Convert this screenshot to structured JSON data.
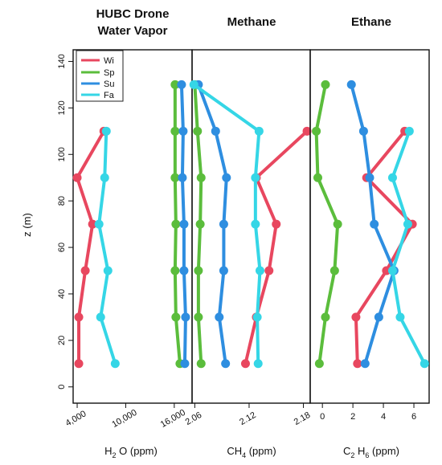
{
  "chart_data": [
    {
      "type": "line",
      "title": "HUBC Drone Water Vapor",
      "title_lines": [
        "HUBC Drone",
        "Water Vapor"
      ],
      "xlabel": "H2 O (ppm)",
      "xlabel_main": "H",
      "xlabel_sub": "2",
      "xlabel_rest": " O (ppm)",
      "ylabel": "z (m)",
      "xlim": [
        3500,
        18200
      ],
      "ylim": [
        -7,
        145
      ],
      "x_ticks": [
        4000,
        10000,
        16000
      ],
      "x_tick_labels": [
        "4,000",
        "10,000",
        "16,000"
      ],
      "y_ticks": [
        0,
        20,
        40,
        60,
        80,
        100,
        120,
        140
      ],
      "legend": {
        "position": "top-left",
        "entries": [
          "Wi",
          "Sp",
          "Su",
          "Fa"
        ]
      },
      "series": [
        {
          "name": "Wi",
          "color": "#e8475f",
          "points": [
            {
              "x": 4200,
              "y": 10
            },
            {
              "x": 4200,
              "y": 30
            },
            {
              "x": 5000,
              "y": 50
            },
            {
              "x": 5900,
              "y": 70
            },
            {
              "x": 4000,
              "y": 90
            },
            {
              "x": 7300,
              "y": 110
            }
          ]
        },
        {
          "name": "Sp",
          "color": "#5bbd3c",
          "points": [
            {
              "x": 16700,
              "y": 10
            },
            {
              "x": 16200,
              "y": 30
            },
            {
              "x": 16100,
              "y": 50
            },
            {
              "x": 16200,
              "y": 70
            },
            {
              "x": 16100,
              "y": 90
            },
            {
              "x": 16100,
              "y": 110
            },
            {
              "x": 16100,
              "y": 130
            }
          ]
        },
        {
          "name": "Su",
          "color": "#2e8ee0",
          "points": [
            {
              "x": 17300,
              "y": 10
            },
            {
              "x": 17400,
              "y": 30
            },
            {
              "x": 17200,
              "y": 50
            },
            {
              "x": 17200,
              "y": 70
            },
            {
              "x": 17000,
              "y": 90
            },
            {
              "x": 17100,
              "y": 110
            },
            {
              "x": 16900,
              "y": 130
            }
          ]
        },
        {
          "name": "Fa",
          "color": "#35d6e6",
          "points": [
            {
              "x": 8700,
              "y": 10
            },
            {
              "x": 6900,
              "y": 30
            },
            {
              "x": 7800,
              "y": 50
            },
            {
              "x": 6700,
              "y": 70
            },
            {
              "x": 7400,
              "y": 90
            },
            {
              "x": 7600,
              "y": 110
            }
          ]
        }
      ]
    },
    {
      "type": "line",
      "title": "Methane",
      "xlabel": "CH4 (ppm)",
      "xlabel_main": "CH",
      "xlabel_sub": "4",
      "xlabel_rest": " (ppm)",
      "xlim": [
        2.057,
        2.1875
      ],
      "ylim": [
        -7,
        145
      ],
      "x_ticks": [
        2.06,
        2.12,
        2.18
      ],
      "x_tick_labels": [
        "2.06",
        "2.12",
        "2.18"
      ],
      "series": [
        {
          "name": "Wi",
          "color": "#e8475f",
          "points": [
            {
              "x": 2.116,
              "y": 10
            },
            {
              "x": 2.128,
              "y": 30
            },
            {
              "x": 2.142,
              "y": 50
            },
            {
              "x": 2.15,
              "y": 70
            },
            {
              "x": 2.128,
              "y": 90
            },
            {
              "x": 2.184,
              "y": 110
            }
          ]
        },
        {
          "name": "Sp",
          "color": "#5bbd3c",
          "points": [
            {
              "x": 2.067,
              "y": 10
            },
            {
              "x": 2.064,
              "y": 30
            },
            {
              "x": 2.064,
              "y": 50
            },
            {
              "x": 2.066,
              "y": 70
            },
            {
              "x": 2.067,
              "y": 90
            },
            {
              "x": 2.063,
              "y": 110
            },
            {
              "x": 2.06,
              "y": 130
            }
          ]
        },
        {
          "name": "Su",
          "color": "#2e8ee0",
          "points": [
            {
              "x": 2.094,
              "y": 10
            },
            {
              "x": 2.087,
              "y": 30
            },
            {
              "x": 2.092,
              "y": 50
            },
            {
              "x": 2.092,
              "y": 70
            },
            {
              "x": 2.095,
              "y": 90
            },
            {
              "x": 2.083,
              "y": 110
            },
            {
              "x": 2.064,
              "y": 130
            }
          ]
        },
        {
          "name": "Fa",
          "color": "#35d6e6",
          "points": [
            {
              "x": 2.13,
              "y": 10
            },
            {
              "x": 2.129,
              "y": 30
            },
            {
              "x": 2.132,
              "y": 50
            },
            {
              "x": 2.127,
              "y": 70
            },
            {
              "x": 2.127,
              "y": 90
            },
            {
              "x": 2.131,
              "y": 110
            },
            {
              "x": 2.059,
              "y": 130
            }
          ]
        }
      ]
    },
    {
      "type": "line",
      "title": "Ethane",
      "xlabel": "C2 H6 (ppm)",
      "xlabel_main": "C",
      "xlabel_sub": "2",
      "xlabel_rest2": " H",
      "xlabel_sub2": "6",
      "xlabel_rest": " (ppm)",
      "xlim": [
        -0.8,
        7
      ],
      "ylim": [
        -7,
        145
      ],
      "x_ticks": [
        0,
        2,
        4,
        6
      ],
      "x_tick_labels": [
        "0",
        "2",
        "4",
        "6"
      ],
      "series": [
        {
          "name": "Wi",
          "color": "#e8475f",
          "points": [
            {
              "x": 2.3,
              "y": 10
            },
            {
              "x": 2.2,
              "y": 30
            },
            {
              "x": 4.2,
              "y": 50
            },
            {
              "x": 5.9,
              "y": 70
            },
            {
              "x": 2.9,
              "y": 90
            },
            {
              "x": 5.4,
              "y": 110
            }
          ]
        },
        {
          "name": "Sp",
          "color": "#5bbd3c",
          "points": [
            {
              "x": -0.2,
              "y": 10
            },
            {
              "x": 0.2,
              "y": 30
            },
            {
              "x": 0.8,
              "y": 50
            },
            {
              "x": 1.0,
              "y": 70
            },
            {
              "x": -0.3,
              "y": 90
            },
            {
              "x": -0.4,
              "y": 110
            },
            {
              "x": 0.2,
              "y": 130
            }
          ]
        },
        {
          "name": "Su",
          "color": "#2e8ee0",
          "points": [
            {
              "x": 2.8,
              "y": 10
            },
            {
              "x": 3.7,
              "y": 30
            },
            {
              "x": 4.7,
              "y": 50
            },
            {
              "x": 3.4,
              "y": 70
            },
            {
              "x": 3.1,
              "y": 90
            },
            {
              "x": 2.7,
              "y": 110
            },
            {
              "x": 1.9,
              "y": 130
            }
          ]
        },
        {
          "name": "Fa",
          "color": "#35d6e6",
          "points": [
            {
              "x": 6.7,
              "y": 10
            },
            {
              "x": 5.1,
              "y": 30
            },
            {
              "x": 4.6,
              "y": 50
            },
            {
              "x": 5.6,
              "y": 70
            },
            {
              "x": 4.6,
              "y": 90
            },
            {
              "x": 5.7,
              "y": 110
            }
          ]
        }
      ]
    }
  ]
}
